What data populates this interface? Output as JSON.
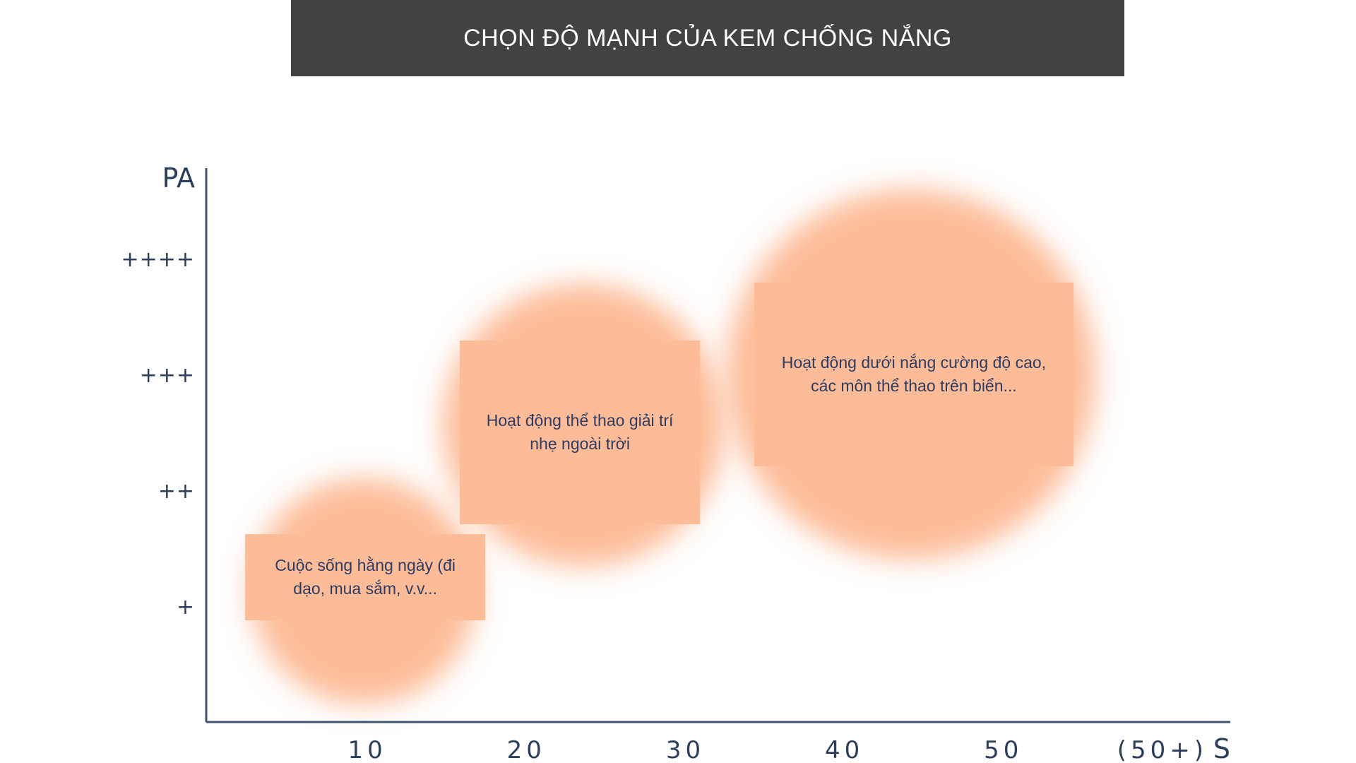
{
  "chart_data": {
    "type": "scatter",
    "title": "CHỌN ĐỘ MẠNH CỦA KEM CHỐNG NẮNG",
    "xlabel": "S",
    "ylabel": "PA",
    "x_ticks": [
      "10",
      "20",
      "30",
      "40",
      "50",
      "(50+)"
    ],
    "y_ticks": [
      "+",
      "++",
      "+++",
      "++++"
    ],
    "xlim": [
      0,
      64.4
    ],
    "ylim": [
      0,
      5
    ],
    "bubble_color": "#fdbc98",
    "points": [
      {
        "x": 10,
        "y": 1.25,
        "label": "Cuộc sống hằng ngày (đi\ndạo, mua sắm, v.v..."
      },
      {
        "x": 23.5,
        "y": 2.5,
        "label": "Hoạt động thể thao giải trí\nnhẹ ngoài trời"
      },
      {
        "x": 44.5,
        "y": 3.0,
        "label": "Hoạt động dưới nắng cường độ cao,\ncác môn thể thao trên biển..."
      }
    ]
  }
}
